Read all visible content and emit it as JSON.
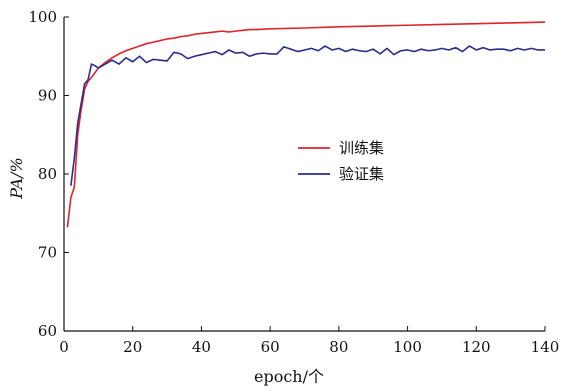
{
  "chart_data": {
    "type": "line",
    "title": "",
    "xlabel": "epoch/个",
    "ylabel": "PA/%",
    "xlim": [
      0,
      140
    ],
    "ylim": [
      60,
      100
    ],
    "x_ticks": [
      0,
      20,
      40,
      60,
      80,
      100,
      120,
      140
    ],
    "y_ticks": [
      60,
      70,
      80,
      90,
      100
    ],
    "grid": false,
    "legend_position": "center-right",
    "series": [
      {
        "name": "训练集",
        "color": "#e0232b",
        "points": [
          [
            1,
            73.2
          ],
          [
            2,
            77
          ],
          [
            3,
            78.3
          ],
          [
            4,
            85
          ],
          [
            5,
            88.2
          ],
          [
            6,
            90.8
          ],
          [
            7,
            91.8
          ],
          [
            8,
            92.3
          ],
          [
            10,
            93.5
          ],
          [
            12,
            94.2
          ],
          [
            14,
            94.8
          ],
          [
            16,
            95.3
          ],
          [
            18,
            95.7
          ],
          [
            20,
            96.0
          ],
          [
            22,
            96.3
          ],
          [
            24,
            96.6
          ],
          [
            26,
            96.8
          ],
          [
            28,
            97.0
          ],
          [
            30,
            97.2
          ],
          [
            32,
            97.3
          ],
          [
            34,
            97.5
          ],
          [
            36,
            97.6
          ],
          [
            38,
            97.8
          ],
          [
            40,
            97.9
          ],
          [
            42,
            98.0
          ],
          [
            44,
            98.1
          ],
          [
            46,
            98.2
          ],
          [
            48,
            98.1
          ],
          [
            50,
            98.2
          ],
          [
            52,
            98.3
          ],
          [
            54,
            98.4
          ],
          [
            56,
            98.4
          ],
          [
            60,
            98.5
          ],
          [
            70,
            98.6
          ],
          [
            80,
            98.75
          ],
          [
            90,
            98.85
          ],
          [
            100,
            98.95
          ],
          [
            110,
            99.05
          ],
          [
            120,
            99.15
          ],
          [
            130,
            99.25
          ],
          [
            140,
            99.35
          ]
        ]
      },
      {
        "name": "验证集",
        "color": "#2b2d8c",
        "points": [
          [
            2,
            78.5
          ],
          [
            3,
            82
          ],
          [
            4,
            86.5
          ],
          [
            5,
            89
          ],
          [
            6,
            91.5
          ],
          [
            7,
            92
          ],
          [
            8,
            94
          ],
          [
            9,
            93.8
          ],
          [
            10,
            93.5
          ],
          [
            12,
            94.0
          ],
          [
            14,
            94.5
          ],
          [
            16,
            94.0
          ],
          [
            18,
            94.8
          ],
          [
            20,
            94.3
          ],
          [
            22,
            95.0
          ],
          [
            24,
            94.2
          ],
          [
            26,
            94.6
          ],
          [
            28,
            94.5
          ],
          [
            30,
            94.4
          ],
          [
            32,
            95.5
          ],
          [
            34,
            95.3
          ],
          [
            36,
            94.7
          ],
          [
            38,
            95.0
          ],
          [
            40,
            95.2
          ],
          [
            42,
            95.4
          ],
          [
            44,
            95.6
          ],
          [
            46,
            95.2
          ],
          [
            48,
            95.8
          ],
          [
            50,
            95.4
          ],
          [
            52,
            95.5
          ],
          [
            54,
            95.0
          ],
          [
            56,
            95.3
          ],
          [
            58,
            95.4
          ],
          [
            60,
            95.3
          ],
          [
            62,
            95.3
          ],
          [
            64,
            96.2
          ],
          [
            66,
            95.9
          ],
          [
            68,
            95.6
          ],
          [
            70,
            95.8
          ],
          [
            72,
            96.0
          ],
          [
            74,
            95.7
          ],
          [
            76,
            96.3
          ],
          [
            78,
            95.8
          ],
          [
            80,
            96.0
          ],
          [
            82,
            95.6
          ],
          [
            84,
            95.9
          ],
          [
            86,
            95.7
          ],
          [
            88,
            95.6
          ],
          [
            90,
            95.9
          ],
          [
            92,
            95.3
          ],
          [
            94,
            96.0
          ],
          [
            96,
            95.2
          ],
          [
            98,
            95.7
          ],
          [
            100,
            95.8
          ],
          [
            102,
            95.6
          ],
          [
            104,
            95.9
          ],
          [
            106,
            95.7
          ],
          [
            108,
            95.8
          ],
          [
            110,
            96.0
          ],
          [
            112,
            95.8
          ],
          [
            114,
            96.1
          ],
          [
            116,
            95.6
          ],
          [
            118,
            96.3
          ],
          [
            120,
            95.8
          ],
          [
            122,
            96.1
          ],
          [
            124,
            95.8
          ],
          [
            126,
            95.9
          ],
          [
            128,
            95.9
          ],
          [
            130,
            95.7
          ],
          [
            132,
            96.0
          ],
          [
            134,
            95.8
          ],
          [
            136,
            96.0
          ],
          [
            138,
            95.8
          ],
          [
            140,
            95.8
          ]
        ]
      }
    ]
  }
}
